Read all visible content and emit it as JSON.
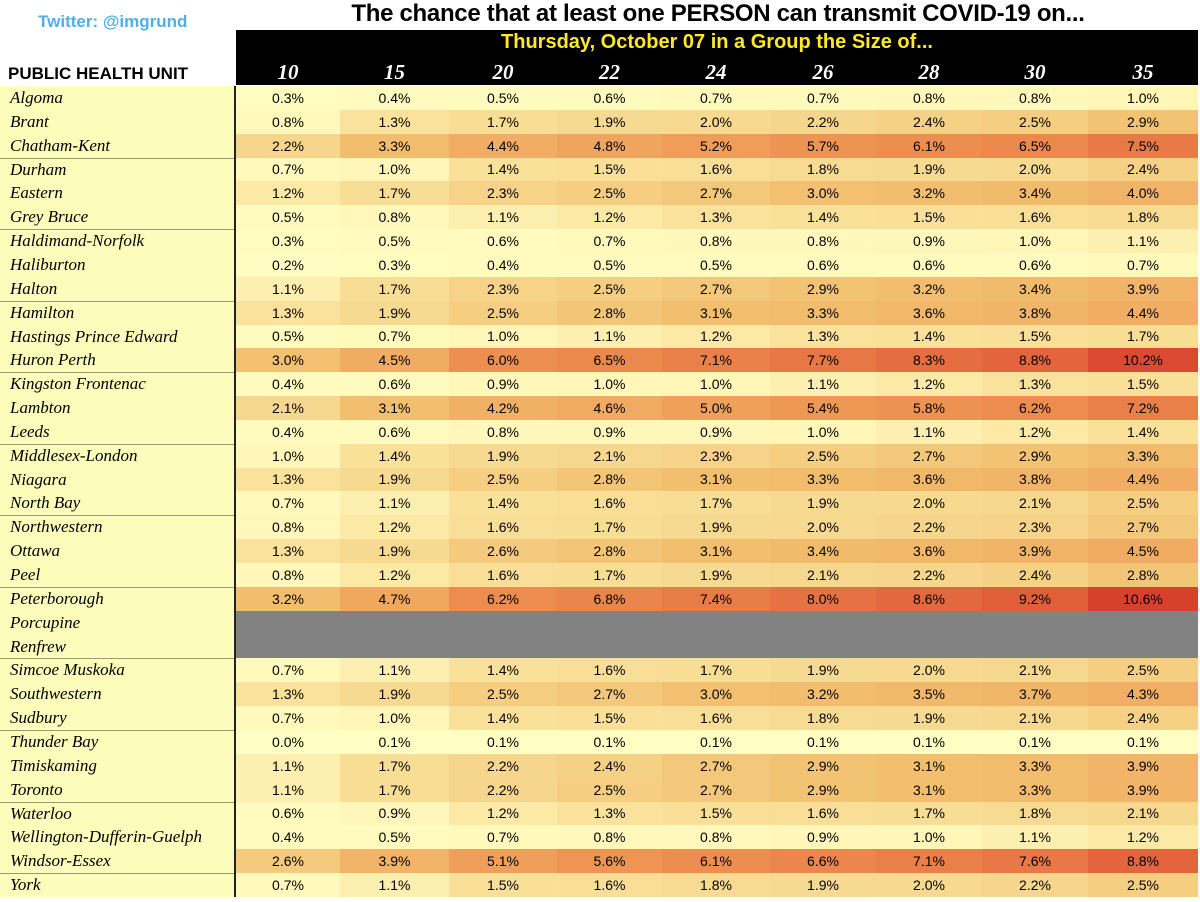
{
  "credit": "Twitter: @imgrund",
  "colors": {
    "title": "#000000",
    "subtitle": "#ffe829",
    "header_bg": "#000000",
    "credit": "#4fb0e6",
    "missing": "#828282",
    "name_bg": "#fdfdbb"
  },
  "chart_data": {
    "type": "heatmap",
    "title": "The chance that at least one PERSON can transmit COVID-19 on...",
    "subtitle": "Thursday, October 07 in a Group the Size of...",
    "row_header": "PUBLIC HEALTH UNIT",
    "columns": [
      "10",
      "15",
      "20",
      "22",
      "24",
      "26",
      "28",
      "30",
      "35"
    ],
    "rows": [
      {
        "name": "Algoma",
        "values": [
          "0.3%",
          "0.4%",
          "0.5%",
          "0.6%",
          "0.7%",
          "0.7%",
          "0.8%",
          "0.8%",
          "1.0%"
        ]
      },
      {
        "name": "Brant",
        "values": [
          "0.8%",
          "1.3%",
          "1.7%",
          "1.9%",
          "2.0%",
          "2.2%",
          "2.4%",
          "2.5%",
          "2.9%"
        ]
      },
      {
        "name": "Chatham-Kent",
        "values": [
          "2.2%",
          "3.3%",
          "4.4%",
          "4.8%",
          "5.2%",
          "5.7%",
          "6.1%",
          "6.5%",
          "7.5%"
        ]
      },
      {
        "name": "Durham",
        "values": [
          "0.7%",
          "1.0%",
          "1.4%",
          "1.5%",
          "1.6%",
          "1.8%",
          "1.9%",
          "2.0%",
          "2.4%"
        ]
      },
      {
        "name": "Eastern",
        "values": [
          "1.2%",
          "1.7%",
          "2.3%",
          "2.5%",
          "2.7%",
          "3.0%",
          "3.2%",
          "3.4%",
          "4.0%"
        ]
      },
      {
        "name": "Grey Bruce",
        "values": [
          "0.5%",
          "0.8%",
          "1.1%",
          "1.2%",
          "1.3%",
          "1.4%",
          "1.5%",
          "1.6%",
          "1.8%"
        ]
      },
      {
        "name": "Haldimand-Norfolk",
        "values": [
          "0.3%",
          "0.5%",
          "0.6%",
          "0.7%",
          "0.8%",
          "0.8%",
          "0.9%",
          "1.0%",
          "1.1%"
        ]
      },
      {
        "name": "Haliburton",
        "values": [
          "0.2%",
          "0.3%",
          "0.4%",
          "0.5%",
          "0.5%",
          "0.6%",
          "0.6%",
          "0.6%",
          "0.7%"
        ]
      },
      {
        "name": "Halton",
        "values": [
          "1.1%",
          "1.7%",
          "2.3%",
          "2.5%",
          "2.7%",
          "2.9%",
          "3.2%",
          "3.4%",
          "3.9%"
        ]
      },
      {
        "name": "Hamilton",
        "values": [
          "1.3%",
          "1.9%",
          "2.5%",
          "2.8%",
          "3.1%",
          "3.3%",
          "3.6%",
          "3.8%",
          "4.4%"
        ]
      },
      {
        "name": "Hastings Prince Edward",
        "values": [
          "0.5%",
          "0.7%",
          "1.0%",
          "1.1%",
          "1.2%",
          "1.3%",
          "1.4%",
          "1.5%",
          "1.7%"
        ]
      },
      {
        "name": "Huron Perth",
        "values": [
          "3.0%",
          "4.5%",
          "6.0%",
          "6.5%",
          "7.1%",
          "7.7%",
          "8.3%",
          "8.8%",
          "10.2%"
        ]
      },
      {
        "name": "Kingston Frontenac",
        "values": [
          "0.4%",
          "0.6%",
          "0.9%",
          "1.0%",
          "1.0%",
          "1.1%",
          "1.2%",
          "1.3%",
          "1.5%"
        ]
      },
      {
        "name": "Lambton",
        "values": [
          "2.1%",
          "3.1%",
          "4.2%",
          "4.6%",
          "5.0%",
          "5.4%",
          "5.8%",
          "6.2%",
          "7.2%"
        ]
      },
      {
        "name": "Leeds",
        "values": [
          "0.4%",
          "0.6%",
          "0.8%",
          "0.9%",
          "0.9%",
          "1.0%",
          "1.1%",
          "1.2%",
          "1.4%"
        ]
      },
      {
        "name": "Middlesex-London",
        "values": [
          "1.0%",
          "1.4%",
          "1.9%",
          "2.1%",
          "2.3%",
          "2.5%",
          "2.7%",
          "2.9%",
          "3.3%"
        ]
      },
      {
        "name": "Niagara",
        "values": [
          "1.3%",
          "1.9%",
          "2.5%",
          "2.8%",
          "3.1%",
          "3.3%",
          "3.6%",
          "3.8%",
          "4.4%"
        ]
      },
      {
        "name": "North Bay",
        "values": [
          "0.7%",
          "1.1%",
          "1.4%",
          "1.6%",
          "1.7%",
          "1.9%",
          "2.0%",
          "2.1%",
          "2.5%"
        ]
      },
      {
        "name": "Northwestern",
        "values": [
          "0.8%",
          "1.2%",
          "1.6%",
          "1.7%",
          "1.9%",
          "2.0%",
          "2.2%",
          "2.3%",
          "2.7%"
        ]
      },
      {
        "name": "Ottawa",
        "values": [
          "1.3%",
          "1.9%",
          "2.6%",
          "2.8%",
          "3.1%",
          "3.4%",
          "3.6%",
          "3.9%",
          "4.5%"
        ]
      },
      {
        "name": "Peel",
        "values": [
          "0.8%",
          "1.2%",
          "1.6%",
          "1.7%",
          "1.9%",
          "2.1%",
          "2.2%",
          "2.4%",
          "2.8%"
        ]
      },
      {
        "name": "Peterborough",
        "values": [
          "3.2%",
          "4.7%",
          "6.2%",
          "6.8%",
          "7.4%",
          "8.0%",
          "8.6%",
          "9.2%",
          "10.6%"
        ]
      },
      {
        "name": "Porcupine",
        "values": null
      },
      {
        "name": "Renfrew",
        "values": null
      },
      {
        "name": "Simcoe Muskoka",
        "values": [
          "0.7%",
          "1.1%",
          "1.4%",
          "1.6%",
          "1.7%",
          "1.9%",
          "2.0%",
          "2.1%",
          "2.5%"
        ]
      },
      {
        "name": "Southwestern",
        "values": [
          "1.3%",
          "1.9%",
          "2.5%",
          "2.7%",
          "3.0%",
          "3.2%",
          "3.5%",
          "3.7%",
          "4.3%"
        ]
      },
      {
        "name": "Sudbury",
        "values": [
          "0.7%",
          "1.0%",
          "1.4%",
          "1.5%",
          "1.6%",
          "1.8%",
          "1.9%",
          "2.1%",
          "2.4%"
        ]
      },
      {
        "name": "Thunder Bay",
        "values": [
          "0.0%",
          "0.1%",
          "0.1%",
          "0.1%",
          "0.1%",
          "0.1%",
          "0.1%",
          "0.1%",
          "0.1%"
        ]
      },
      {
        "name": "Timiskaming",
        "values": [
          "1.1%",
          "1.7%",
          "2.2%",
          "2.4%",
          "2.7%",
          "2.9%",
          "3.1%",
          "3.3%",
          "3.9%"
        ]
      },
      {
        "name": "Toronto",
        "values": [
          "1.1%",
          "1.7%",
          "2.2%",
          "2.5%",
          "2.7%",
          "2.9%",
          "3.1%",
          "3.3%",
          "3.9%"
        ]
      },
      {
        "name": "Waterloo",
        "values": [
          "0.6%",
          "0.9%",
          "1.2%",
          "1.3%",
          "1.5%",
          "1.6%",
          "1.7%",
          "1.8%",
          "2.1%"
        ]
      },
      {
        "name": "Wellington-Dufferin-Guelph",
        "values": [
          "0.4%",
          "0.5%",
          "0.7%",
          "0.8%",
          "0.8%",
          "0.9%",
          "1.0%",
          "1.1%",
          "1.2%"
        ]
      },
      {
        "name": "Windsor-Essex",
        "values": [
          "2.6%",
          "3.9%",
          "5.1%",
          "5.6%",
          "6.1%",
          "6.6%",
          "7.1%",
          "7.6%",
          "8.8%"
        ]
      },
      {
        "name": "York",
        "values": [
          "0.7%",
          "1.1%",
          "1.5%",
          "1.6%",
          "1.8%",
          "1.9%",
          "2.0%",
          "2.2%",
          "2.5%"
        ]
      }
    ]
  }
}
